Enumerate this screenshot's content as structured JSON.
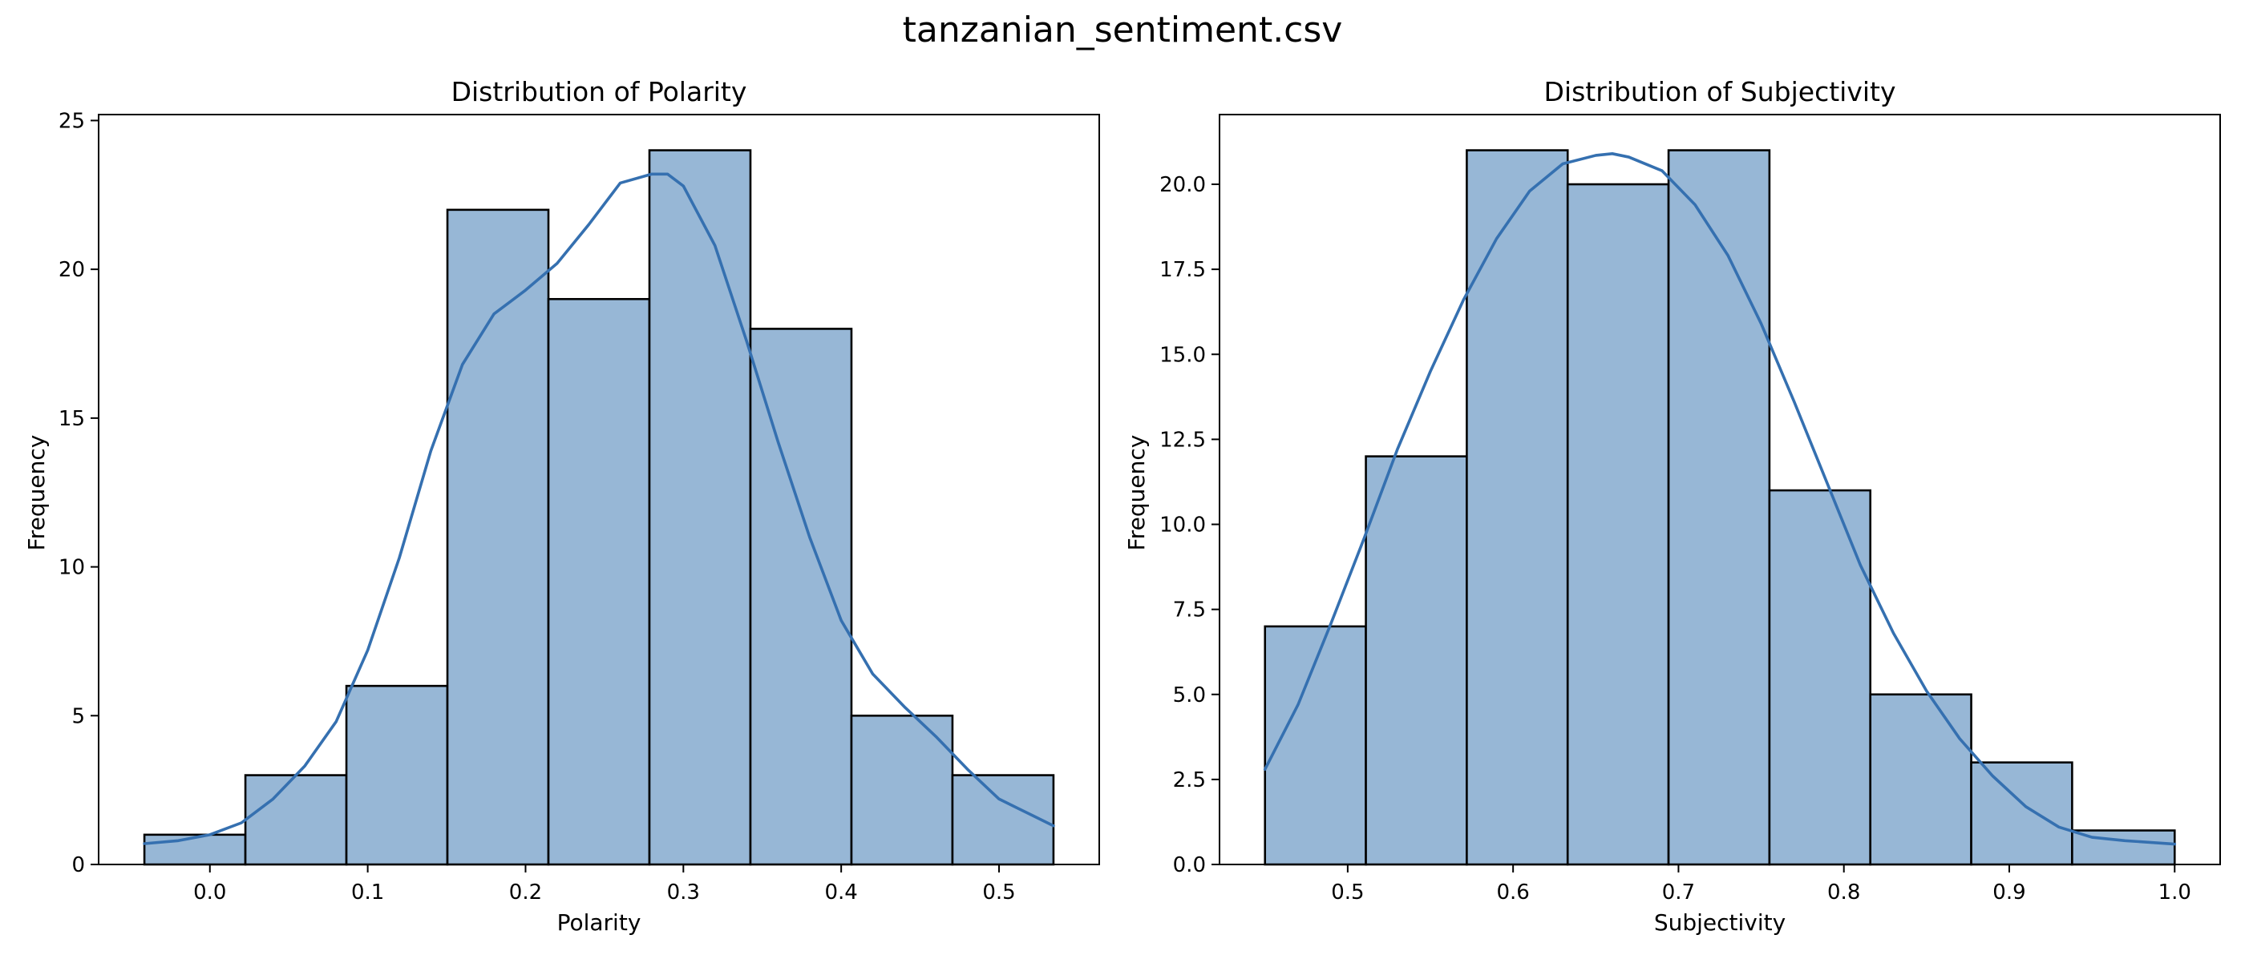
{
  "figure": {
    "title": "tanzanian_sentiment.csv"
  },
  "colors": {
    "bar_fill": "#97b7d6",
    "bar_edge": "#000000",
    "kde_line": "#3570b0"
  },
  "chart_data": [
    {
      "type": "bar",
      "subtype": "histogram",
      "title": "Distribution of Polarity",
      "xlabel": "Polarity",
      "ylabel": "Frequency",
      "bin_edges": [
        -0.0415,
        0.0225,
        0.0865,
        0.1505,
        0.2145,
        0.2785,
        0.3425,
        0.4065,
        0.4705,
        0.5345
      ],
      "values": [
        1,
        3,
        6,
        22,
        19,
        24,
        18,
        5,
        3
      ],
      "xlim": [
        -0.0705,
        0.5635
      ],
      "ylim": [
        0,
        25.2
      ],
      "xticks": [
        0.0,
        0.1,
        0.2,
        0.3,
        0.4,
        0.5
      ],
      "xtick_labels": [
        "0.0",
        "0.1",
        "0.2",
        "0.3",
        "0.4",
        "0.5"
      ],
      "yticks": [
        0,
        5,
        10,
        15,
        20,
        25
      ],
      "ytick_labels": [
        "0",
        "5",
        "10",
        "15",
        "20",
        "25"
      ],
      "kde": {
        "x": [
          -0.0415,
          -0.02,
          0.0,
          0.02,
          0.04,
          0.06,
          0.08,
          0.1,
          0.12,
          0.14,
          0.16,
          0.18,
          0.2,
          0.22,
          0.24,
          0.26,
          0.28,
          0.29,
          0.3,
          0.32,
          0.34,
          0.36,
          0.38,
          0.4,
          0.42,
          0.44,
          0.46,
          0.48,
          0.5,
          0.5345
        ],
        "y": [
          0.7,
          0.8,
          1.0,
          1.4,
          2.2,
          3.3,
          4.8,
          7.2,
          10.3,
          13.9,
          16.8,
          18.5,
          19.3,
          20.2,
          21.5,
          22.9,
          23.2,
          23.2,
          22.8,
          20.8,
          17.6,
          14.2,
          11.0,
          8.2,
          6.4,
          5.3,
          4.3,
          3.2,
          2.2,
          1.3
        ]
      },
      "grid": false,
      "legend": "none"
    },
    {
      "type": "bar",
      "subtype": "histogram",
      "title": "Distribution of Subjectivity",
      "xlabel": "Subjectivity",
      "ylabel": "Frequency",
      "bin_edges": [
        0.45,
        0.511,
        0.572,
        0.633,
        0.694,
        0.755,
        0.816,
        0.877,
        0.938,
        1.0
      ],
      "values": [
        7,
        12,
        21,
        20,
        21,
        11,
        5,
        3,
        1
      ],
      "xlim": [
        0.4225,
        1.0275
      ],
      "ylim": [
        0,
        22.05
      ],
      "xticks": [
        0.5,
        0.6,
        0.7,
        0.8,
        0.9,
        1.0
      ],
      "xtick_labels": [
        "0.5",
        "0.6",
        "0.7",
        "0.8",
        "0.9",
        "1.0"
      ],
      "yticks": [
        0,
        2.5,
        5,
        7.5,
        10,
        12.5,
        15,
        17.5,
        20
      ],
      "ytick_labels": [
        "0.0",
        "2.5",
        "5.0",
        "7.5",
        "10.0",
        "12.5",
        "15.0",
        "17.5",
        "20.0"
      ],
      "kde": {
        "x": [
          0.45,
          0.47,
          0.49,
          0.51,
          0.53,
          0.55,
          0.57,
          0.59,
          0.61,
          0.63,
          0.65,
          0.66,
          0.67,
          0.69,
          0.71,
          0.73,
          0.75,
          0.77,
          0.79,
          0.81,
          0.83,
          0.85,
          0.87,
          0.89,
          0.91,
          0.93,
          0.95,
          0.97,
          1.0
        ],
        "y": [
          2.8,
          4.7,
          7.1,
          9.6,
          12.2,
          14.5,
          16.6,
          18.4,
          19.8,
          20.6,
          20.85,
          20.9,
          20.8,
          20.4,
          19.4,
          17.9,
          15.9,
          13.6,
          11.2,
          8.8,
          6.8,
          5.1,
          3.7,
          2.6,
          1.7,
          1.1,
          0.8,
          0.7,
          0.6
        ]
      },
      "grid": false,
      "legend": "none"
    }
  ]
}
